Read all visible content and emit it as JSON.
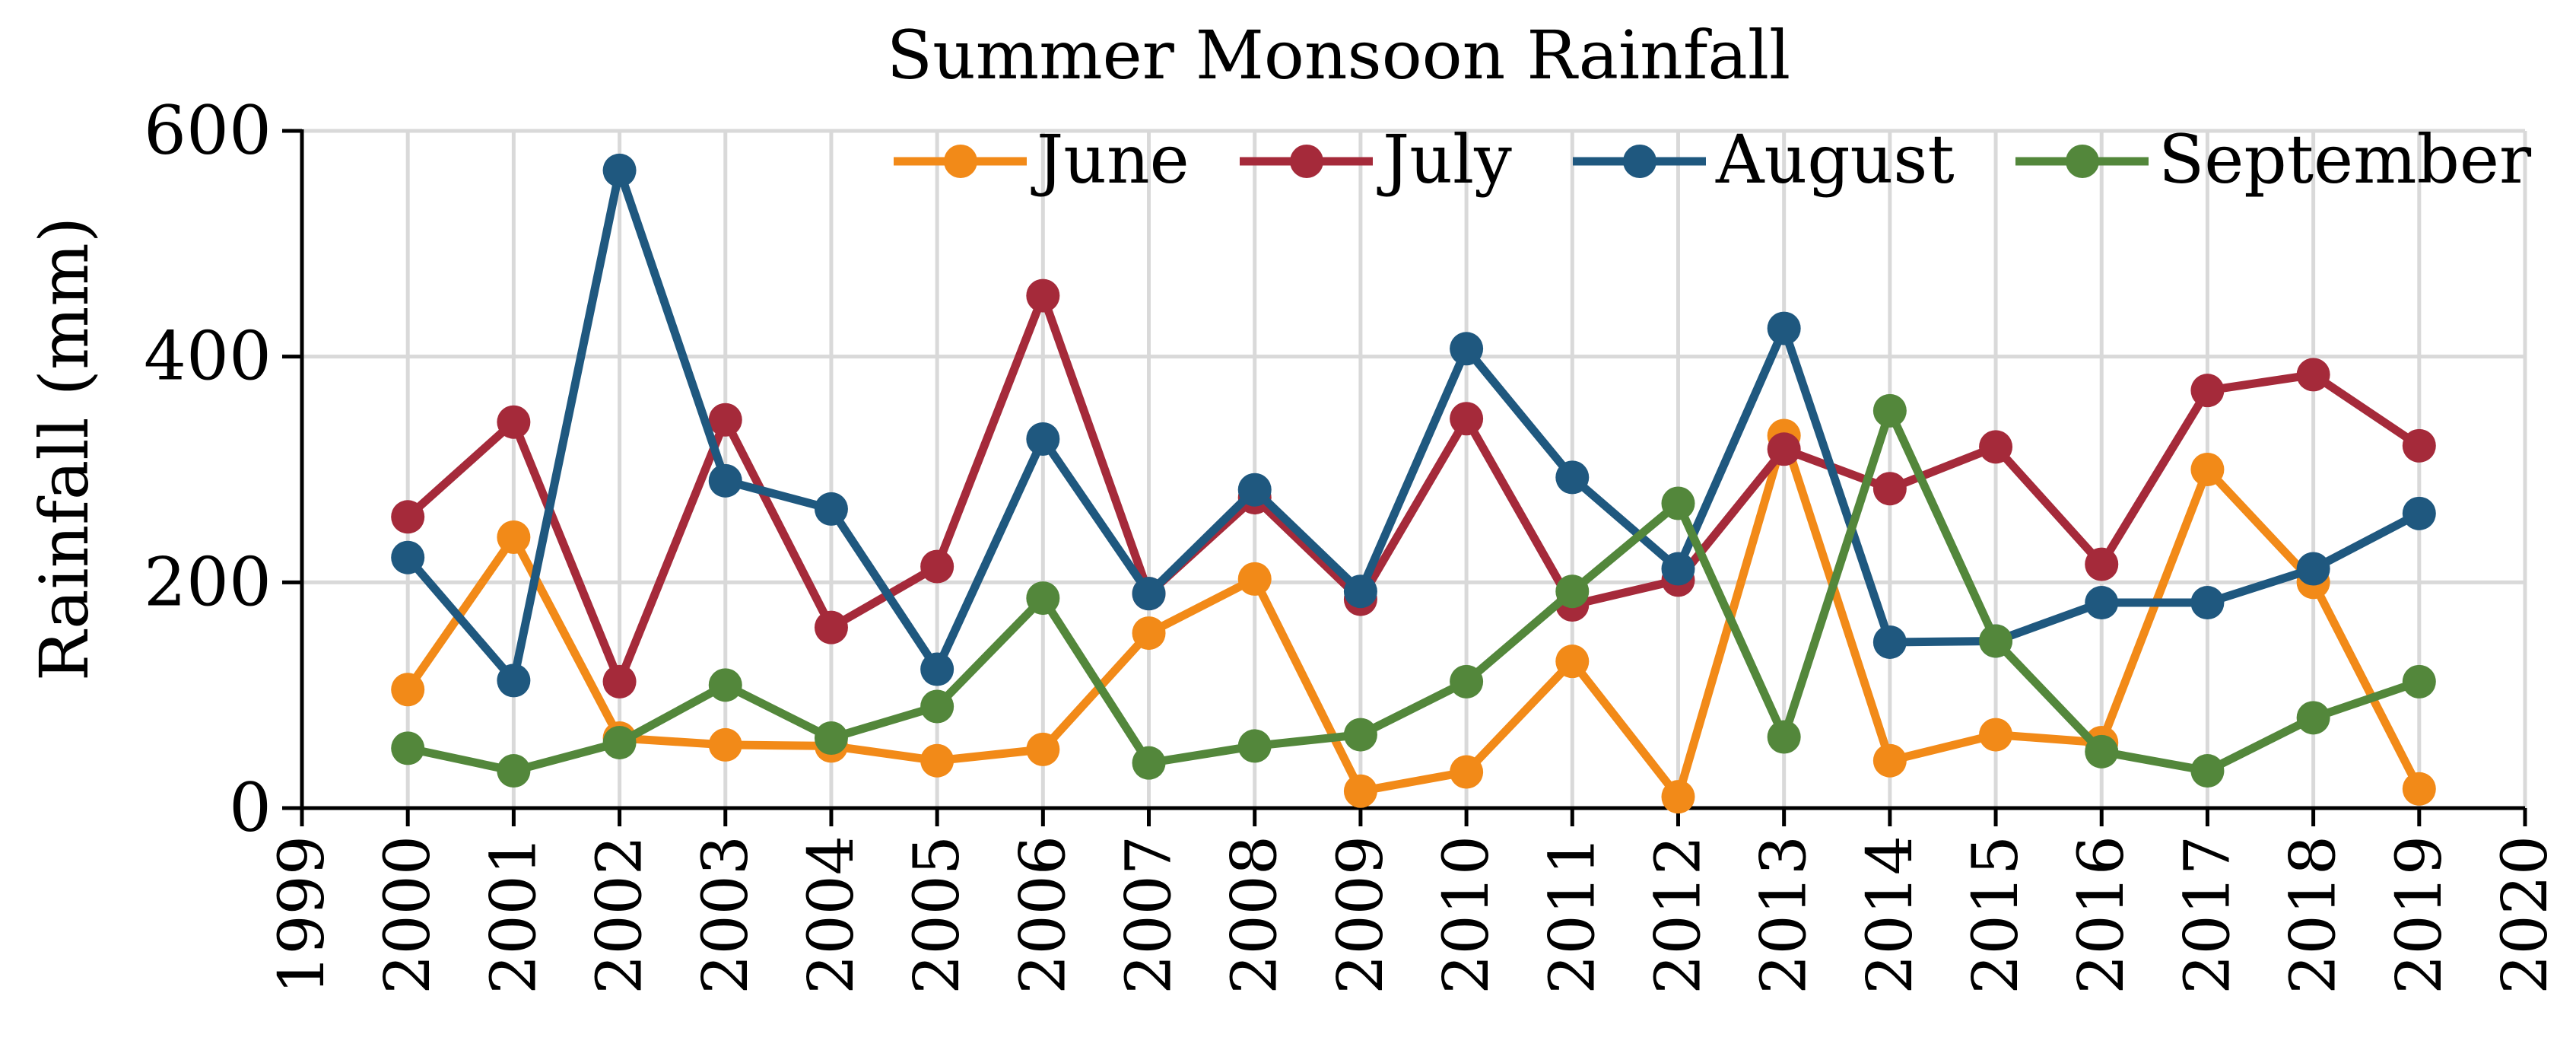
{
  "chart_data": {
    "type": "line",
    "title": "Summer Monsoon Rainfall",
    "xlabel": "",
    "ylabel": "Rainfall (mm)",
    "xlim": [
      1999,
      2020
    ],
    "ylim": [
      0,
      600
    ],
    "x_ticks": [
      "1999",
      "2000",
      "2001",
      "2002",
      "2003",
      "2004",
      "2005",
      "2006",
      "2007",
      "2008",
      "2009",
      "2010",
      "2011",
      "2012",
      "2013",
      "2014",
      "2015",
      "2016",
      "2017",
      "2018",
      "2019",
      "2020"
    ],
    "y_ticks": [
      "0",
      "200",
      "400",
      "600"
    ],
    "grid": true,
    "legend_position": "top-right",
    "x": [
      2000,
      2001,
      2002,
      2003,
      2004,
      2005,
      2006,
      2007,
      2008,
      2009,
      2010,
      2011,
      2012,
      2013,
      2014,
      2015,
      2016,
      2017,
      2018,
      2019
    ],
    "series": [
      {
        "name": "June",
        "color": "#F28A18",
        "values": [
          105,
          240,
          62,
          56,
          55,
          42,
          52,
          155,
          203,
          15,
          32,
          130,
          10,
          330,
          42,
          65,
          58,
          300,
          200,
          17
        ]
      },
      {
        "name": "July",
        "color": "#A52A3A",
        "values": [
          258,
          342,
          112,
          344,
          160,
          214,
          454,
          190,
          275,
          185,
          345,
          180,
          202,
          318,
          283,
          320,
          216,
          370,
          384,
          321
        ]
      },
      {
        "name": "August",
        "color": "#1F587F",
        "values": [
          222,
          113,
          565,
          290,
          265,
          123,
          327,
          190,
          282,
          192,
          407,
          293,
          212,
          425,
          147,
          148,
          182,
          182,
          212,
          261
        ]
      },
      {
        "name": "September",
        "color": "#53873B",
        "values": [
          53,
          33,
          58,
          109,
          62,
          90,
          186,
          40,
          55,
          65,
          112,
          192,
          270,
          63,
          352,
          148,
          50,
          33,
          80,
          112
        ]
      }
    ]
  }
}
